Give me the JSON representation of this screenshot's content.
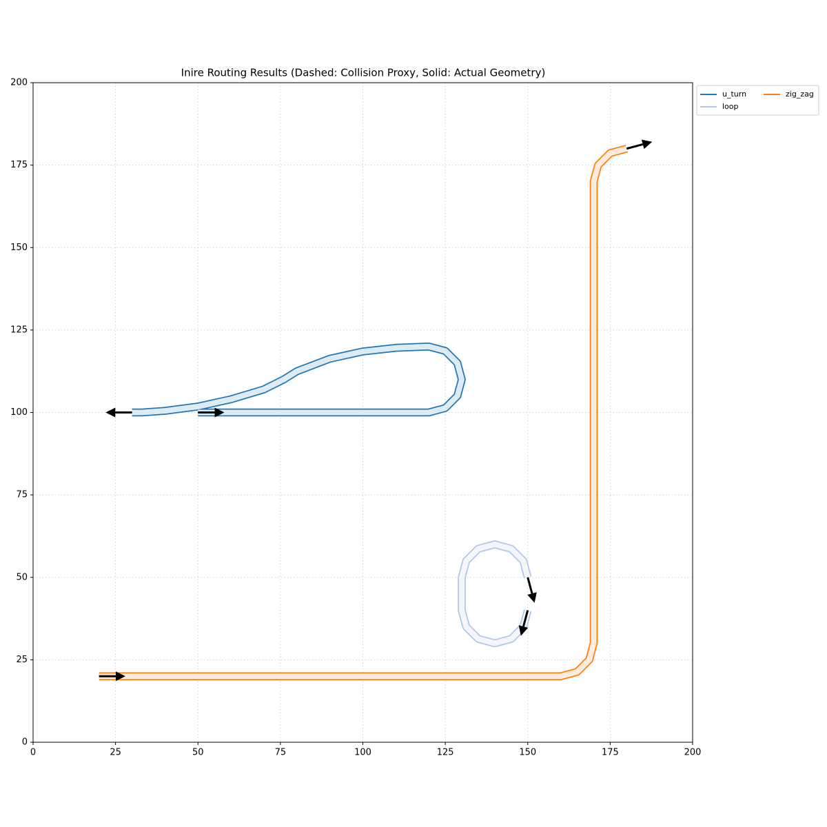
{
  "chart_data": {
    "type": "route",
    "title": "Inire Routing Results (Dashed: Collision Proxy, Solid: Actual Geometry)",
    "xlim": [
      0,
      200
    ],
    "ylim": [
      0,
      200
    ],
    "xticks": [
      0,
      25,
      50,
      75,
      100,
      125,
      150,
      175,
      200
    ],
    "yticks": [
      0,
      25,
      50,
      75,
      100,
      125,
      150,
      175,
      200
    ],
    "grid": true,
    "legend": "outside-upper-right",
    "series": [
      {
        "name": "u_turn",
        "color": "#1f77b4",
        "x": [
          50,
          120,
          125,
          128.66,
          130,
          128.66,
          125,
          120,
          110,
          100,
          90,
          80,
          76,
          70,
          60,
          50,
          40,
          33,
          30
        ],
        "y": [
          100,
          100,
          101.34,
          105,
          110,
          115,
          118.66,
          120,
          119.6,
          118.5,
          116.3,
          112.5,
          110,
          107,
          104,
          101.8,
          100.5,
          100,
          100
        ]
      },
      {
        "name": "loop",
        "color": "#aec7e8",
        "x": [
          150,
          148.66,
          145,
          140,
          135,
          131.34,
          130,
          130,
          131.34,
          135,
          140,
          145,
          148.66,
          150
        ],
        "y": [
          40,
          35,
          31.34,
          30,
          31.34,
          35,
          40,
          50,
          55,
          58.66,
          60,
          58.66,
          55,
          50
        ]
      },
      {
        "name": "zig_zag",
        "color": "#ff7f0e",
        "x": [
          20,
          160,
          165,
          168.66,
          170,
          170,
          171.34,
          175,
          180
        ],
        "y": [
          20,
          20,
          21.34,
          25,
          30,
          170,
          175,
          178.66,
          180
        ]
      }
    ]
  }
}
